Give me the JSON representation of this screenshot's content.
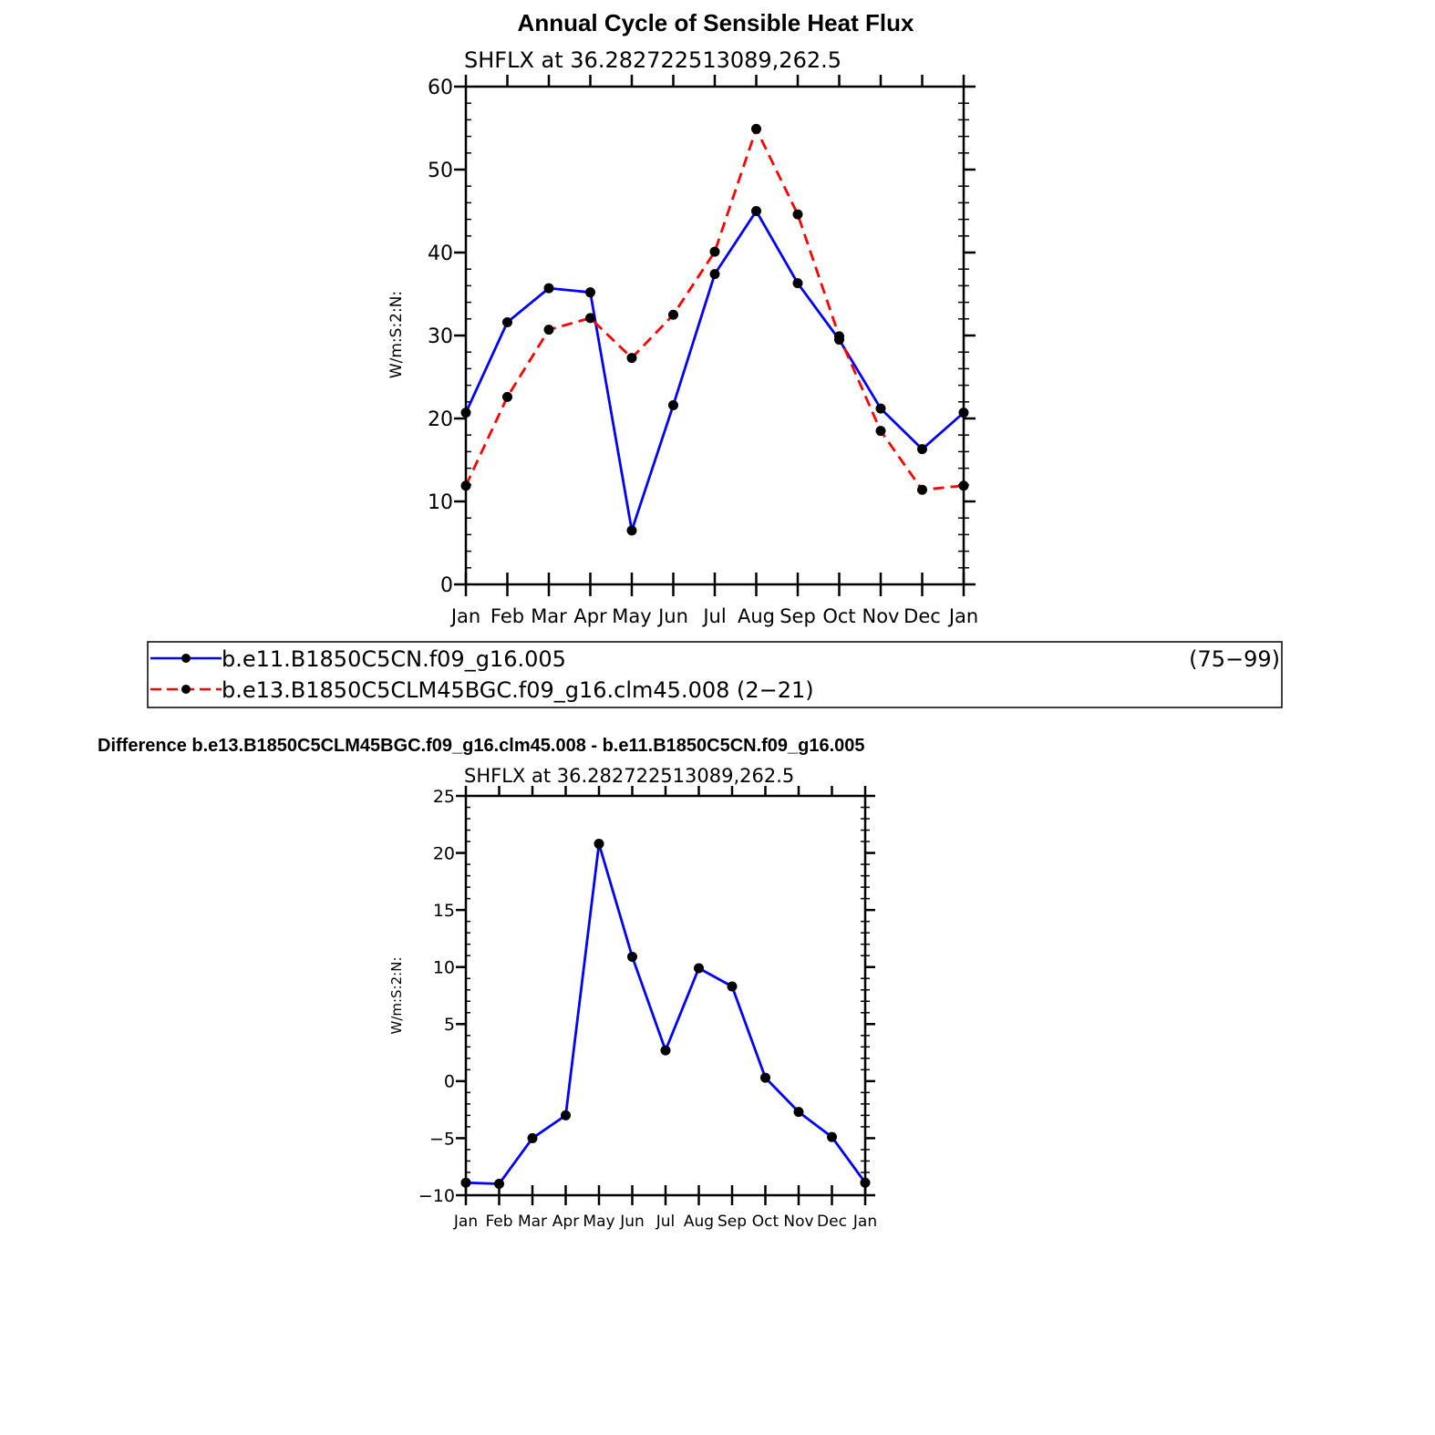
{
  "page": {
    "title": "Annual Cycle of Sensible Heat Flux",
    "difference_title": "Difference b.e13.B1850C5CLM45BGC.f09_g16.clm45.008 - b.e11.B1850C5CN.f09_g16.005"
  },
  "colors": {
    "series1": "#0000ff",
    "series2": "#ff0000",
    "marker": "#000000",
    "axis": "#000000"
  },
  "legend": {
    "entries": [
      {
        "label": "b.e11.B1850C5CN.f09_g16.005",
        "years": "(75−99)",
        "style": "solid",
        "color": "#0000ff"
      },
      {
        "label": "b.e13.B1850C5CLM45BGC.f09_g16.clm45.008 (2−21)",
        "style": "dashed",
        "color": "#ff0000"
      }
    ]
  },
  "chart_data": [
    {
      "type": "line",
      "subtitle": "SHFLX  at  36.282722513089,262.5",
      "ylabel": "W/m:S:2:N:",
      "xlabel": "",
      "categories": [
        "Jan",
        "Feb",
        "Mar",
        "Apr",
        "May",
        "Jun",
        "Jul",
        "Aug",
        "Sep",
        "Oct",
        "Nov",
        "Dec",
        "Jan"
      ],
      "ylim": [
        0,
        60
      ],
      "yticks": [
        0,
        10,
        20,
        30,
        40,
        50,
        60
      ],
      "yticklabels": [
        "0",
        "10",
        "20",
        "30",
        "40",
        "50",
        "60"
      ],
      "series": [
        {
          "name": "b.e11.B1850C5CN.f09_g16.005",
          "color": "#0000ff",
          "dash": false,
          "values": [
            20.7,
            31.6,
            35.7,
            35.2,
            6.5,
            21.6,
            37.4,
            45.0,
            36.3,
            29.5,
            21.2,
            16.3,
            20.7
          ]
        },
        {
          "name": "b.e13.B1850C5CLM45BGC.f09_g16.clm45.008",
          "color": "#ff0000",
          "dash": true,
          "values": [
            11.9,
            22.6,
            30.7,
            32.1,
            27.3,
            32.5,
            40.1,
            54.9,
            44.6,
            29.9,
            18.5,
            11.4,
            11.9
          ]
        }
      ]
    },
    {
      "type": "line",
      "subtitle": "SHFLX  at  36.282722513089,262.5",
      "ylabel": "W/m:S:2:N:",
      "xlabel": "",
      "categories": [
        "Jan",
        "Feb",
        "Mar",
        "Apr",
        "May",
        "Jun",
        "Jul",
        "Aug",
        "Sep",
        "Oct",
        "Nov",
        "Dec",
        "Jan"
      ],
      "ylim": [
        -10,
        25
      ],
      "yticks": [
        -10,
        -5,
        0,
        5,
        10,
        15,
        20,
        25
      ],
      "yticklabels": [
        "−10",
        "−5",
        "0",
        "5",
        "10",
        "15",
        "20",
        "25"
      ],
      "series": [
        {
          "name": "Difference",
          "color": "#0000ff",
          "dash": false,
          "values": [
            -8.9,
            -9.0,
            -5.0,
            -3.0,
            20.8,
            10.9,
            2.7,
            9.9,
            8.3,
            0.3,
            -2.7,
            -4.9,
            -8.9
          ]
        }
      ]
    }
  ]
}
